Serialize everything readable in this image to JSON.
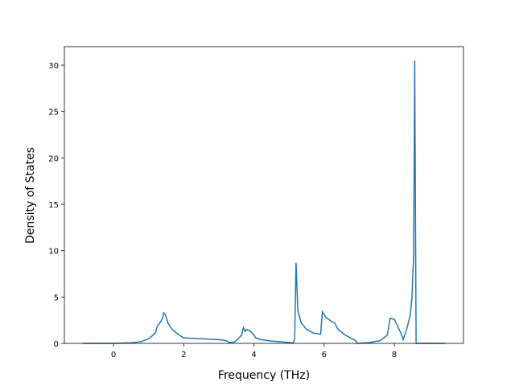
{
  "chart_data": {
    "type": "line",
    "xlabel": "Frequency (THz)",
    "ylabel": "Density of States",
    "x": [
      -0.88,
      0,
      0.5,
      0.8,
      1.0,
      1.1,
      1.2,
      1.25,
      1.3,
      1.4,
      1.43,
      1.48,
      1.55,
      1.65,
      1.8,
      1.95,
      2.0,
      2.5,
      3.0,
      3.2,
      3.3,
      3.45,
      3.55,
      3.65,
      3.7,
      3.75,
      3.8,
      3.9,
      4.0,
      4.05,
      4.2,
      4.5,
      5.0,
      5.12,
      5.16,
      5.2,
      5.25,
      5.35,
      5.5,
      5.7,
      5.9,
      5.95,
      6.05,
      6.2,
      6.3,
      6.4,
      6.6,
      6.9,
      6.95,
      7.3,
      7.6,
      7.8,
      7.88,
      8.0,
      8.1,
      8.2,
      8.25,
      8.35,
      8.45,
      8.5,
      8.55,
      8.58,
      8.62,
      9.45
    ],
    "series": [
      {
        "color": "#1f77b4",
        "values": [
          0,
          0,
          0.05,
          0.2,
          0.5,
          0.8,
          1.2,
          1.9,
          2.1,
          2.7,
          3.3,
          3.1,
          2.2,
          1.6,
          1.1,
          0.7,
          0.6,
          0.5,
          0.4,
          0.3,
          0.1,
          0.15,
          0.5,
          0.9,
          1.7,
          1.3,
          1.5,
          1.3,
          0.9,
          0.6,
          0.4,
          0.25,
          0.1,
          0.05,
          0.5,
          8.7,
          3.5,
          2.2,
          1.5,
          1.1,
          1.0,
          3.4,
          2.8,
          2.4,
          2.2,
          1.5,
          0.9,
          0.3,
          0.0,
          0.1,
          0.3,
          0.9,
          2.7,
          2.6,
          1.8,
          1.0,
          0.4,
          1.5,
          3.0,
          4.8,
          9.5,
          30.5,
          0,
          0
        ]
      }
    ],
    "xlim": [
      -1.4,
      9.97
    ],
    "ylim": [
      0,
      32
    ],
    "xticks": [
      0,
      2,
      4,
      6,
      8
    ],
    "yticks": [
      0,
      5,
      10,
      15,
      20,
      25,
      30
    ]
  }
}
